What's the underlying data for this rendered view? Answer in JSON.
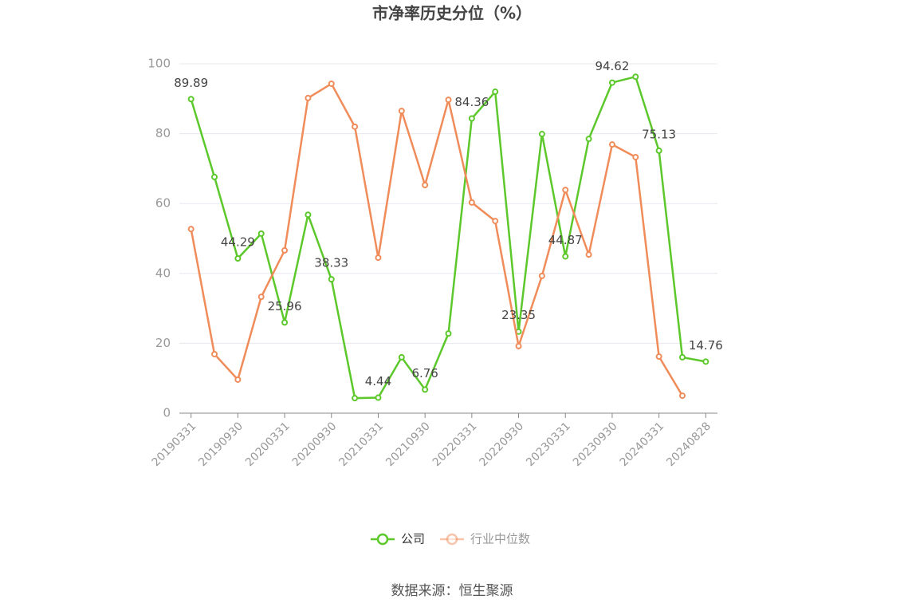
{
  "chart_data": {
    "type": "line",
    "title": "市净率历史分位（%）",
    "categories": [
      "20190331",
      null,
      "20190930",
      null,
      "20200331",
      null,
      "20200930",
      null,
      "20210331",
      null,
      "20210930",
      null,
      "20220331",
      null,
      "20220930",
      null,
      "20230331",
      null,
      "20230930",
      null,
      "20240331",
      null,
      "20240828"
    ],
    "series": [
      {
        "name": "公司",
        "color": "#5cc82b",
        "values": [
          89.89,
          67.6,
          44.29,
          51.4,
          25.96,
          56.8,
          38.33,
          4.3,
          4.44,
          16.0,
          6.76,
          22.8,
          84.36,
          92.0,
          23.35,
          79.9,
          44.87,
          78.5,
          94.62,
          96.3,
          75.13,
          16.0,
          14.76
        ]
      },
      {
        "name": "行业中位数",
        "color": "#f08c5a",
        "values": [
          52.7,
          16.9,
          9.6,
          33.3,
          46.6,
          90.2,
          94.3,
          82.0,
          44.5,
          86.5,
          65.3,
          89.7,
          60.3,
          55.0,
          19.2,
          39.3,
          63.9,
          45.4,
          76.9,
          73.3,
          16.2,
          5.0,
          null
        ]
      }
    ],
    "ylim": [
      0,
      100
    ],
    "yticks": [
      0,
      20,
      40,
      60,
      80,
      100
    ],
    "grid": true,
    "source": "数据来源：恒生聚源"
  }
}
